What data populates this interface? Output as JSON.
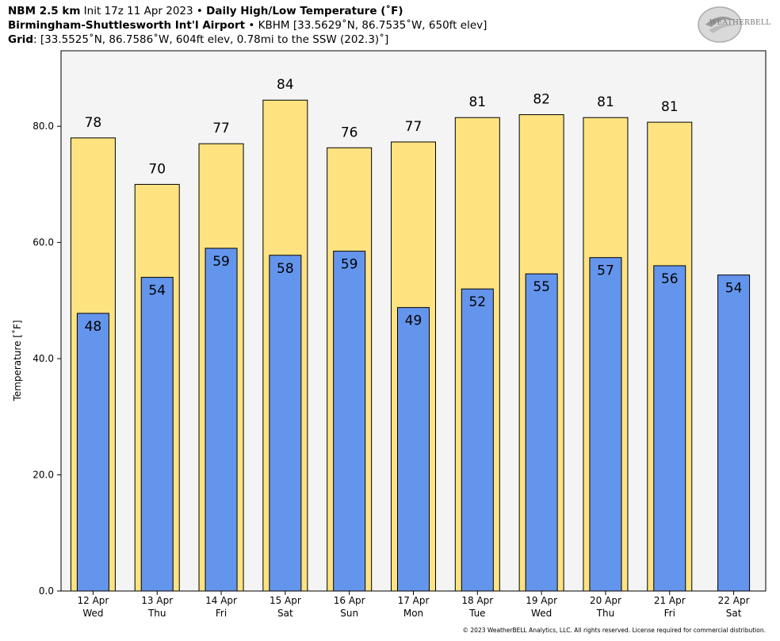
{
  "header": {
    "line1_model": "NBM 2.5 km",
    "line1_init": " Init 17z 11 Apr 2023 • ",
    "line1_product": "Daily High/Low Temperature (˚F)",
    "line2_station": "Birmingham-Shuttlesworth Int'l Airport",
    "line2_detail": " • KBHM [33.5629˚N, 86.7535˚W, 650ft elev]",
    "line3_label": "Grid",
    "line3_detail": ": [33.5525˚N, 86.7586˚W, 604ft elev, 0.78mi to the SSW (202.3)˚]"
  },
  "logo": {
    "text": "WEATHERBELL"
  },
  "footer": {
    "copyright": "© 2023 WeatherBELL Analytics, LLC. All rights reserved. License required for commercial distribution."
  },
  "colors": {
    "high": "#FFE380",
    "low": "#6495ED",
    "plot_bg": "#F4F4F4"
  },
  "chart_data": {
    "type": "bar",
    "ylabel": "Temperature [˚F]",
    "ylim": [
      0,
      93
    ],
    "yticks": [
      0,
      20,
      40,
      60,
      80
    ],
    "ytick_labels": [
      "0.0",
      "20.0",
      "40.0",
      "60.0",
      "80.0"
    ],
    "grid": false,
    "categories": [
      "12 Apr",
      "13 Apr",
      "14 Apr",
      "15 Apr",
      "16 Apr",
      "17 Apr",
      "18 Apr",
      "19 Apr",
      "20 Apr",
      "21 Apr",
      "22 Apr"
    ],
    "weekdays": [
      "Wed",
      "Thu",
      "Fri",
      "Sat",
      "Sun",
      "Mon",
      "Tue",
      "Wed",
      "Thu",
      "Fri",
      "Sat"
    ],
    "series": [
      {
        "values": [
          78,
          70,
          77,
          84.5,
          76.3,
          77.3,
          81.5,
          82,
          81.5,
          80.7,
          null
        ],
        "labels": [
          "78",
          "70",
          "77",
          "84",
          "76",
          "77",
          "81",
          "82",
          "81",
          "81",
          ""
        ]
      },
      {
        "values": [
          47.8,
          54,
          59,
          57.8,
          58.5,
          48.8,
          52,
          54.6,
          57.4,
          56,
          54.4
        ],
        "labels": [
          "48",
          "54",
          "59",
          "58",
          "59",
          "49",
          "52",
          "55",
          "57",
          "56",
          "54"
        ]
      }
    ]
  }
}
